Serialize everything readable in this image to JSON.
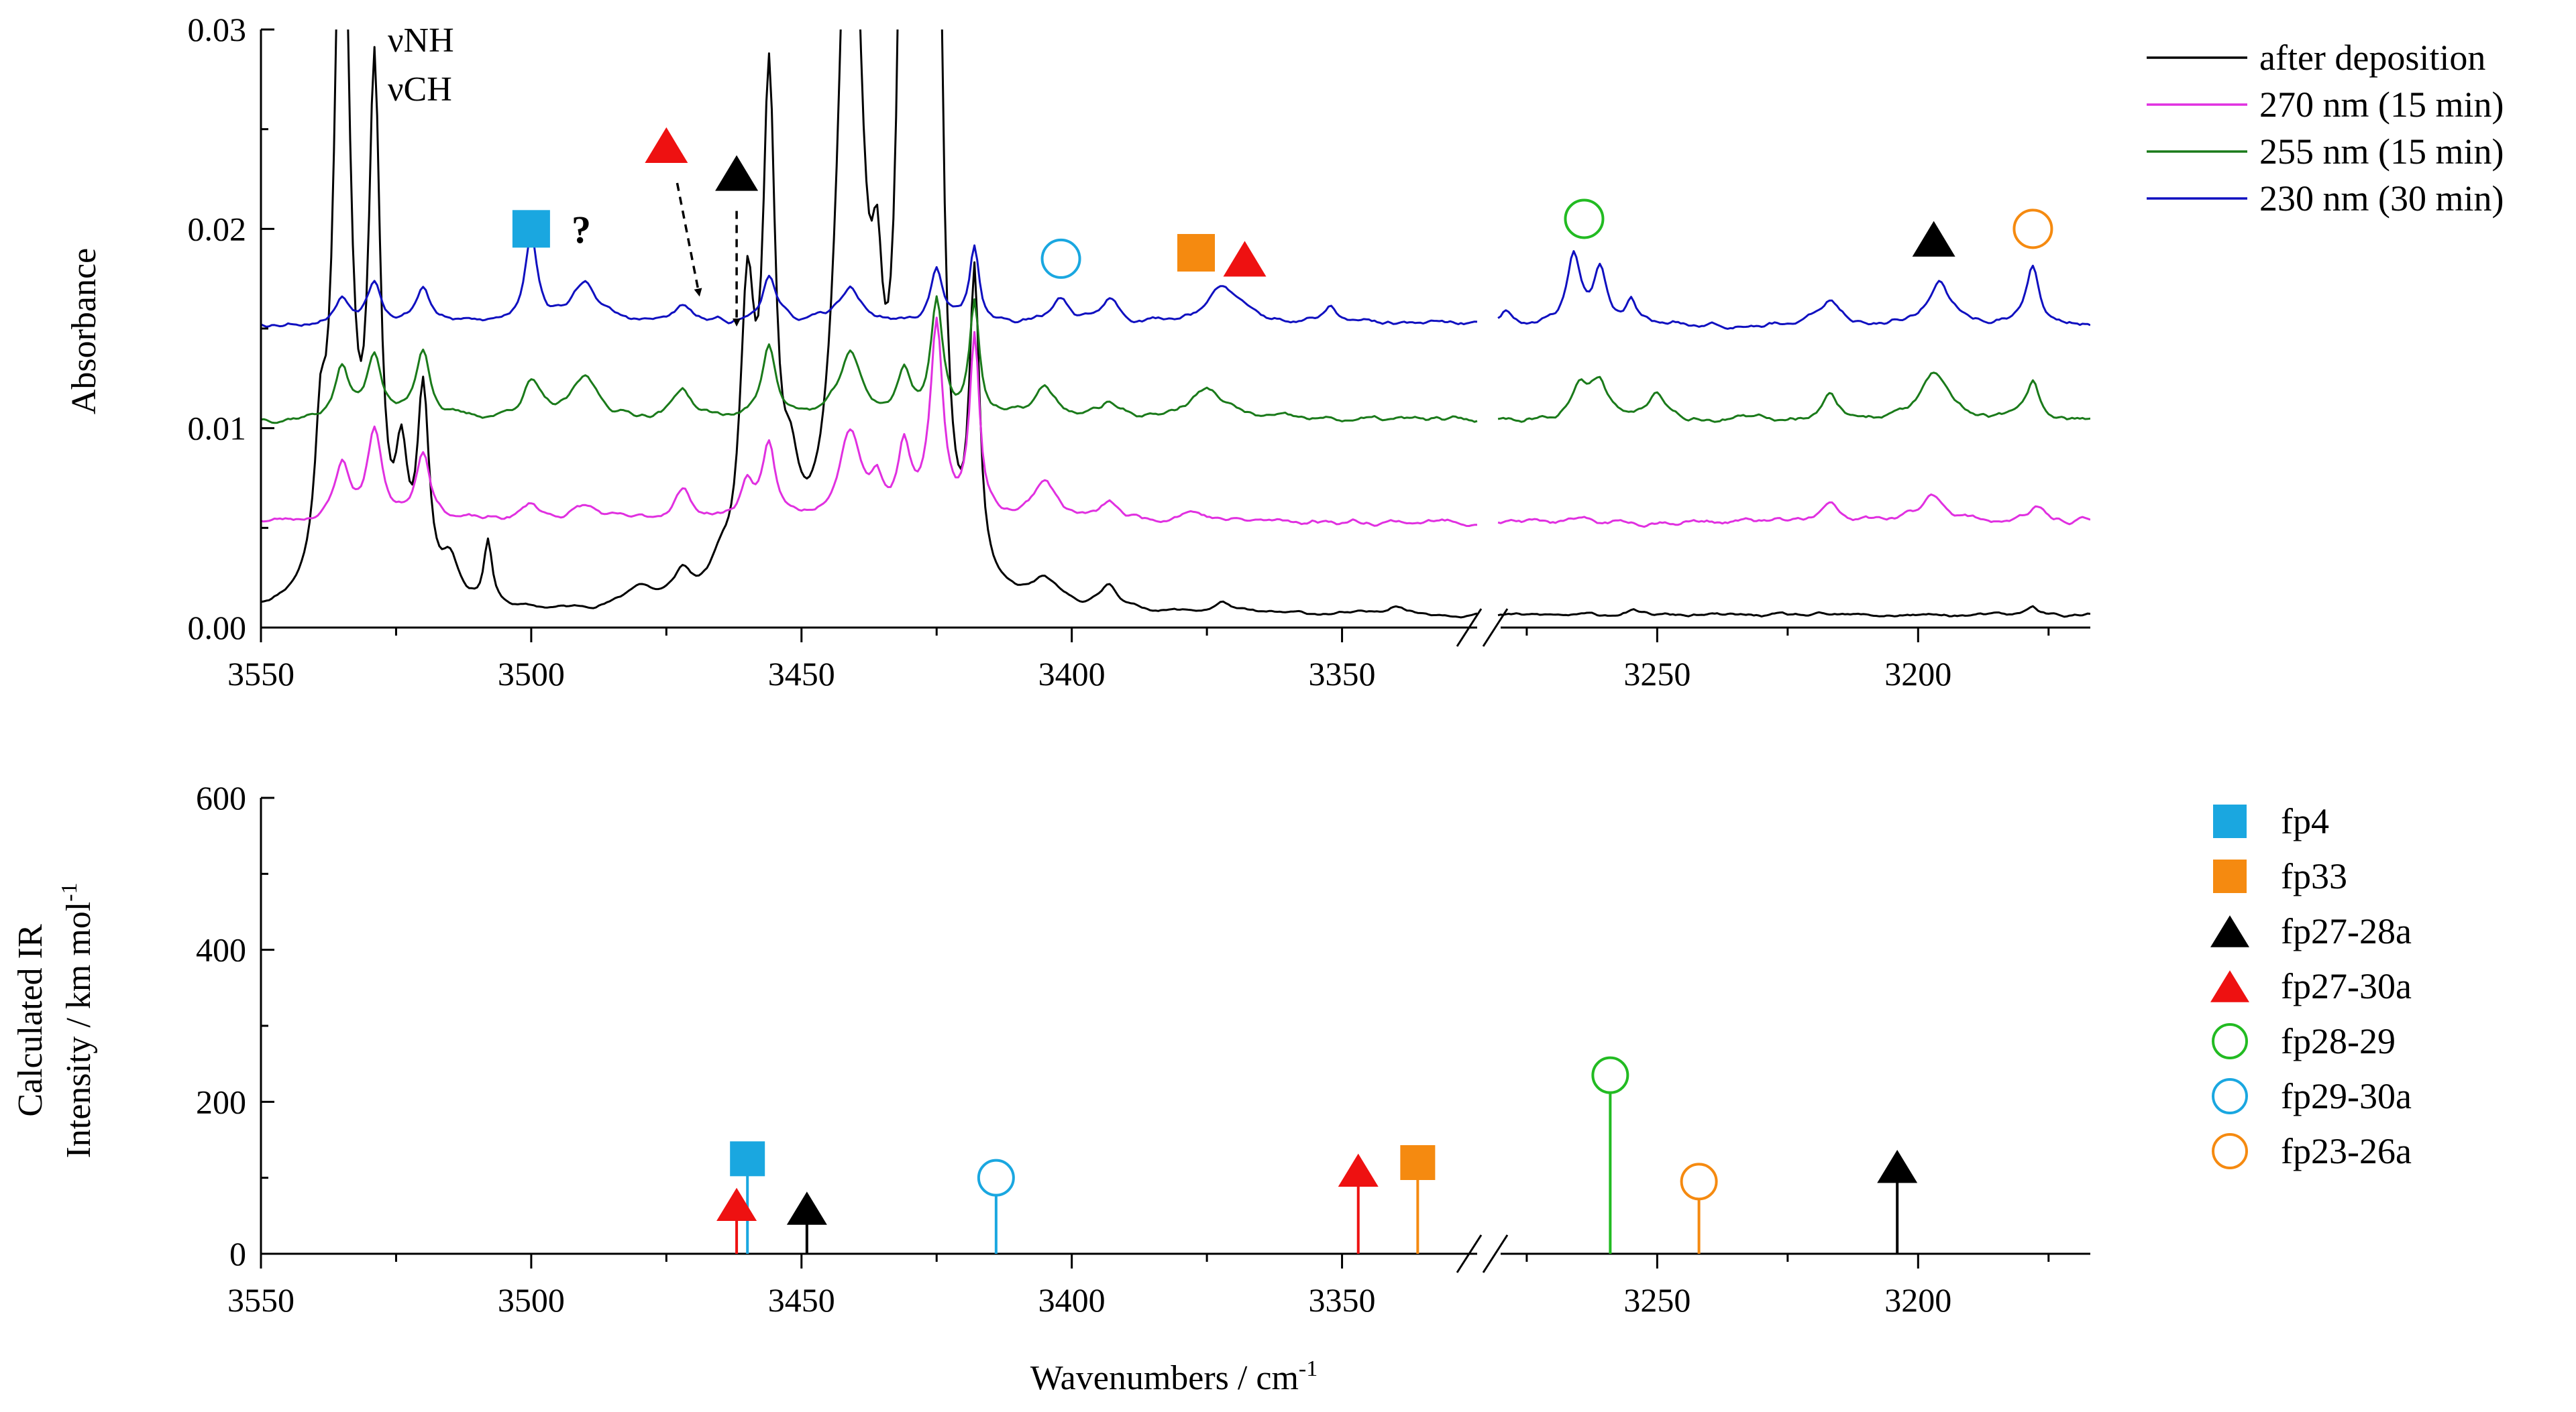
{
  "chart_data": [
    {
      "type": "line",
      "panel": "top",
      "ylabel": "Absorbance",
      "xlabel": "",
      "ylim": [
        0,
        0.03
      ],
      "yticks": [
        {
          "value": 0.0,
          "label": "0.00"
        },
        {
          "value": 0.01,
          "label": "0.01"
        },
        {
          "value": 0.02,
          "label": "0.02"
        },
        {
          "value": 0.03,
          "label": "0.03"
        }
      ],
      "x_segments": [
        [
          3550,
          3325
        ],
        [
          3280,
          3167
        ]
      ],
      "xticks": [
        {
          "value": 3550,
          "label": "3550"
        },
        {
          "value": 3500,
          "label": "3500"
        },
        {
          "value": 3450,
          "label": "3450"
        },
        {
          "value": 3400,
          "label": "3400"
        },
        {
          "value": 3350,
          "label": "3350"
        },
        {
          "value": 3250,
          "label": "3250"
        },
        {
          "value": 3200,
          "label": "3200"
        }
      ],
      "annotations": {
        "vNH": "νNH",
        "vCH": "νCH",
        "question": "?"
      },
      "legend": {
        "placement": "top-right",
        "items": [
          {
            "name": "after deposition",
            "color": "#000000"
          },
          {
            "name": "270 nm (15 min)",
            "color": "#e030e0"
          },
          {
            "name": "255 nm (15 min)",
            "color": "#1a7a1a"
          },
          {
            "name": "230 nm (30 min)",
            "color": "#1010c0"
          }
        ]
      },
      "series": [
        {
          "name": "after deposition",
          "color": "#000000",
          "offset": 0.0,
          "base": 0.0006,
          "peaks": [
            [
              3539,
              0.006,
              1.2
            ],
            [
              3535,
              0.04,
              1.6
            ],
            [
              3529,
              0.025,
              1.3
            ],
            [
              3524,
              0.006,
              1.4
            ],
            [
              3520,
              0.01,
              1.3
            ],
            [
              3515,
              0.002,
              2
            ],
            [
              3508,
              0.0032,
              0.9
            ],
            [
              3480,
              0.001,
              3
            ],
            [
              3472,
              0.0014,
              2
            ],
            [
              3465,
              0.0012,
              2
            ],
            [
              3460,
              0.014,
              1.6
            ],
            [
              3456,
              0.024,
              1.4
            ],
            [
              3452,
              0.004,
              2
            ],
            [
              3441,
              0.04,
              2.6
            ],
            [
              3436,
              0.008,
              1.2
            ],
            [
              3431,
              0.04,
              1.3
            ],
            [
              3428,
              0.04,
              1.1
            ],
            [
              3425,
              0.04,
              1.2
            ],
            [
              3418,
              0.015,
              1.1
            ],
            [
              3405,
              0.0012,
              3
            ],
            [
              3393,
              0.0012,
              2
            ],
            [
              3372,
              0.0005,
              2
            ],
            [
              3340,
              0.0005,
              2
            ],
            [
              3255,
              0.0002,
              2
            ],
            [
              3178,
              0.0005,
              1.2
            ]
          ],
          "noise": 0.00012,
          "seed": 11
        },
        {
          "name": "270 nm (15 min)",
          "color": "#e030e0",
          "offset": 0.005,
          "base": 0.0003,
          "peaks": [
            [
              3535,
              0.0028,
              1.6
            ],
            [
              3529,
              0.0045,
              1.6
            ],
            [
              3520,
              0.0035,
              1.6
            ],
            [
              3500,
              0.0008,
              2
            ],
            [
              3490,
              0.0007,
              3
            ],
            [
              3472,
              0.0015,
              2
            ],
            [
              3460,
              0.0018,
              1.5
            ],
            [
              3456,
              0.0035,
              1.4
            ],
            [
              3441,
              0.0045,
              2.5
            ],
            [
              3436,
              0.0015,
              1.2
            ],
            [
              3431,
              0.0035,
              1.4
            ],
            [
              3425,
              0.0095,
              1.4
            ],
            [
              3418,
              0.009,
              1.1
            ],
            [
              3405,
              0.002,
              2.5
            ],
            [
              3393,
              0.0008,
              2
            ],
            [
              3378,
              0.0005,
              3
            ],
            [
              3217,
              0.0008,
              2
            ],
            [
              3197,
              0.0013,
              3
            ],
            [
              3177,
              0.0006,
              2
            ]
          ],
          "noise": 0.0002,
          "seed": 23
        },
        {
          "name": "255 nm (15 min)",
          "color": "#1a7a1a",
          "offset": 0.01,
          "base": 0.0004,
          "peaks": [
            [
              3535,
              0.0025,
              1.6
            ],
            [
              3529,
              0.0032,
              1.6
            ],
            [
              3520,
              0.0035,
              1.6
            ],
            [
              3500,
              0.0018,
              2
            ],
            [
              3490,
              0.002,
              3
            ],
            [
              3472,
              0.0015,
              2
            ],
            [
              3456,
              0.0038,
              1.5
            ],
            [
              3441,
              0.0032,
              2.5
            ],
            [
              3431,
              0.0022,
              1.5
            ],
            [
              3425,
              0.0058,
              1.3
            ],
            [
              3418,
              0.0058,
              1.1
            ],
            [
              3405,
              0.0015,
              2.5
            ],
            [
              3393,
              0.0008,
              2
            ],
            [
              3375,
              0.0015,
              4
            ],
            [
              3265,
              0.0015,
              2
            ],
            [
              3261,
              0.0018,
              2
            ],
            [
              3250,
              0.0015,
              2
            ],
            [
              3217,
              0.0012,
              2
            ],
            [
              3197,
              0.0023,
              3
            ],
            [
              3178,
              0.0018,
              1.5
            ]
          ],
          "noise": 0.0002,
          "seed": 37
        },
        {
          "name": "230 nm (30 min)",
          "color": "#1010c0",
          "offset": 0.015,
          "base": 0.0002,
          "peaks": [
            [
              3535,
              0.0012,
              1.6
            ],
            [
              3529,
              0.0022,
              1.6
            ],
            [
              3520,
              0.0018,
              1.6
            ],
            [
              3500,
              0.0045,
              1.4
            ],
            [
              3490,
              0.002,
              3
            ],
            [
              3472,
              0.0008,
              2
            ],
            [
              3456,
              0.0025,
              1.5
            ],
            [
              3441,
              0.0018,
              2.5
            ],
            [
              3425,
              0.0028,
              1.3
            ],
            [
              3418,
              0.0038,
              1.1
            ],
            [
              3402,
              0.0012,
              2
            ],
            [
              3393,
              0.0012,
              2
            ],
            [
              3372,
              0.0018,
              4
            ],
            [
              3352,
              0.0008,
              1.5
            ],
            [
              3279,
              0.0008,
              1.2
            ],
            [
              3266,
              0.0033,
              1.5
            ],
            [
              3261,
              0.0028,
              1.5
            ],
            [
              3255,
              0.0012,
              1.2
            ],
            [
              3217,
              0.0012,
              2
            ],
            [
              3196,
              0.0022,
              2.5
            ],
            [
              3178,
              0.0028,
              1.5
            ]
          ],
          "noise": 0.0002,
          "seed": 53
        }
      ],
      "markers": [
        {
          "shape": "square",
          "color": "#1aa7e0",
          "filled": true,
          "x": 3500,
          "y": 0.02
        },
        {
          "shape": "triangle",
          "color": "#ee1111",
          "filled": true,
          "x": 3475,
          "y": 0.0242
        },
        {
          "shape": "triangle",
          "color": "#000000",
          "filled": true,
          "x": 3462,
          "y": 0.0228
        },
        {
          "shape": "circle",
          "color": "#1aa7e0",
          "filled": false,
          "x": 3402,
          "y": 0.0185
        },
        {
          "shape": "square",
          "color": "#f58a10",
          "filled": true,
          "x": 3377,
          "y": 0.0188
        },
        {
          "shape": "triangle",
          "color": "#ee1111",
          "filled": true,
          "x": 3368,
          "y": 0.0185
        },
        {
          "shape": "circle",
          "color": "#22bb22",
          "filled": false,
          "x": 3264,
          "y": 0.0205
        },
        {
          "shape": "triangle",
          "color": "#000000",
          "filled": true,
          "x": 3197,
          "y": 0.0195
        },
        {
          "shape": "circle",
          "color": "#f58a10",
          "filled": false,
          "x": 3178,
          "y": 0.02
        }
      ],
      "arrows": [
        {
          "from": [
            3473,
            0.0223
          ],
          "to": [
            3469,
            0.0168
          ]
        },
        {
          "from": [
            3462,
            0.0209
          ],
          "to": [
            3462,
            0.0153
          ]
        }
      ]
    },
    {
      "type": "stem",
      "panel": "bottom",
      "ylabel_line1": "Calculated IR",
      "ylabel_line2": "Intensity / km mol",
      "ylabel_sup": "-1",
      "xlabel": "Wavenumbers / cm",
      "xlabel_sup": "-1",
      "ylim": [
        0,
        600
      ],
      "yticks": [
        {
          "value": 0,
          "label": "0"
        },
        {
          "value": 200,
          "label": "200"
        },
        {
          "value": 400,
          "label": "400"
        },
        {
          "value": 600,
          "label": "600"
        }
      ],
      "x_segments": [
        [
          3550,
          3325
        ],
        [
          3280,
          3167
        ]
      ],
      "xticks": [
        {
          "value": 3550,
          "label": "3550"
        },
        {
          "value": 3500,
          "label": "3500"
        },
        {
          "value": 3450,
          "label": "3450"
        },
        {
          "value": 3400,
          "label": "3400"
        },
        {
          "value": 3350,
          "label": "3350"
        },
        {
          "value": 3250,
          "label": "3250"
        },
        {
          "value": 3200,
          "label": "3200"
        }
      ],
      "legend": {
        "placement": "right",
        "items": [
          {
            "name": "fp4",
            "shape": "square",
            "color": "#1aa7e0",
            "filled": true
          },
          {
            "name": "fp33",
            "shape": "square",
            "color": "#f58a10",
            "filled": true
          },
          {
            "name": "fp27-28a",
            "shape": "triangle",
            "color": "#000000",
            "filled": true
          },
          {
            "name": "fp27-30a",
            "shape": "triangle",
            "color": "#ee1111",
            "filled": true
          },
          {
            "name": "fp28-29",
            "shape": "circle",
            "color": "#22bb22",
            "filled": false
          },
          {
            "name": "fp29-30a",
            "shape": "circle",
            "color": "#1aa7e0",
            "filled": false
          },
          {
            "name": "fp23-26a",
            "shape": "circle",
            "color": "#f58a10",
            "filled": false
          }
        ]
      },
      "stems": [
        {
          "label": "fp4",
          "x": 3460,
          "intensity": 125,
          "shape": "square",
          "color": "#1aa7e0",
          "filled": true
        },
        {
          "label": "fp27-30a",
          "x": 3462,
          "intensity": 65,
          "shape": "triangle",
          "color": "#ee1111",
          "filled": true
        },
        {
          "label": "fp27-28a",
          "x": 3449,
          "intensity": 60,
          "shape": "triangle",
          "color": "#000000",
          "filled": true
        },
        {
          "label": "fp29-30a",
          "x": 3414,
          "intensity": 100,
          "shape": "circle",
          "color": "#1aa7e0",
          "filled": false
        },
        {
          "label": "fp27-30a",
          "x": 3347,
          "intensity": 110,
          "shape": "triangle",
          "color": "#ee1111",
          "filled": true
        },
        {
          "label": "fp33",
          "x": 3336,
          "intensity": 120,
          "shape": "square",
          "color": "#f58a10",
          "filled": true
        },
        {
          "label": "fp28-29",
          "x": 3259,
          "intensity": 235,
          "shape": "circle",
          "color": "#22bb22",
          "filled": false
        },
        {
          "label": "fp23-26a",
          "x": 3242,
          "intensity": 95,
          "shape": "circle",
          "color": "#f58a10",
          "filled": false
        },
        {
          "label": "fp27-28a",
          "x": 3204,
          "intensity": 115,
          "shape": "triangle",
          "color": "#000000",
          "filled": true
        }
      ]
    }
  ]
}
